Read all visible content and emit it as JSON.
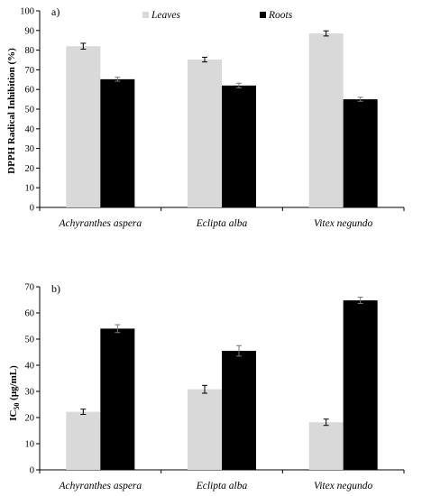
{
  "colors": {
    "leaves": "#d9d9d9",
    "roots": "#000000",
    "axis": "#000000"
  },
  "chart_data": [
    {
      "type": "bar",
      "panel_label": "a)",
      "ylabel": "DPPH Radical Inhibition (%)",
      "ylim": [
        0,
        100
      ],
      "yticks": [
        0,
        10,
        20,
        30,
        40,
        50,
        60,
        70,
        80,
        90,
        100
      ],
      "categories": [
        "Achyranthes aspera",
        "Eclipta alba",
        "Vitex negundo"
      ],
      "legend": {
        "placement": "top-center",
        "entries": [
          "Leaves",
          "Roots"
        ]
      },
      "series": [
        {
          "name": "Leaves",
          "values": [
            82,
            75.2,
            88.5
          ],
          "errors": [
            1.5,
            1.2,
            1.3
          ]
        },
        {
          "name": "Roots",
          "values": [
            65.2,
            62,
            55
          ],
          "errors": [
            1.0,
            1.2,
            1.0
          ]
        }
      ]
    },
    {
      "type": "bar",
      "panel_label": "b)",
      "ylabel_main": "IC",
      "ylabel_sub": "50",
      "ylabel_rest": " (μg/mL)",
      "ylim": [
        0,
        70
      ],
      "yticks": [
        0,
        10,
        20,
        30,
        40,
        50,
        60,
        70
      ],
      "categories": [
        "Achyranthes aspera",
        "Eclipta alba",
        "Vitex negundo"
      ],
      "series": [
        {
          "name": "Leaves",
          "values": [
            22.2,
            30.8,
            18.2
          ],
          "errors": [
            1.0,
            1.5,
            1.2
          ]
        },
        {
          "name": "Roots",
          "values": [
            54,
            45.5,
            64.8
          ],
          "errors": [
            1.5,
            2.0,
            1.2
          ]
        }
      ]
    }
  ]
}
